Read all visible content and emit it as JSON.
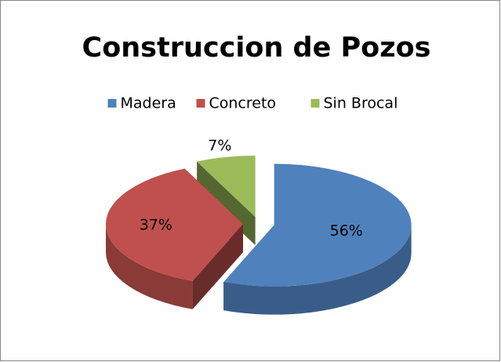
{
  "chart_data": {
    "type": "pie",
    "title": "Construccion de Pozos",
    "categories": [
      "Madera",
      "Concreto",
      "Sin Brocal"
    ],
    "values": [
      56,
      37,
      7
    ],
    "value_labels": [
      "56%",
      "37%",
      "7%"
    ],
    "colors": [
      "#4f81bd",
      "#c0504d",
      "#9bbb59"
    ],
    "legend": "top"
  }
}
